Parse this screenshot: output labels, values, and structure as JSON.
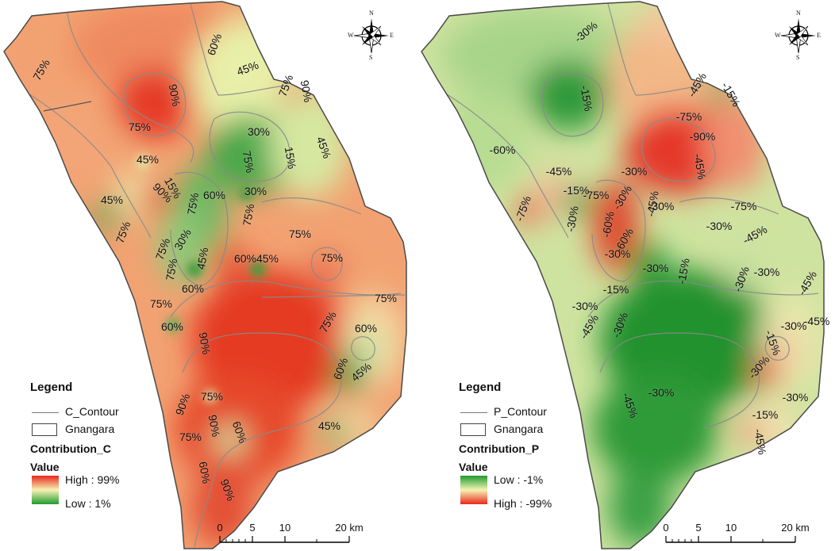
{
  "maps": [
    {
      "id": "C",
      "legend": {
        "title": "Legend",
        "contour_label": "C_Contour",
        "region_label": "Gnangara",
        "field_label": "Contribution_C",
        "value_label": "Value",
        "high_label": "High : 99%",
        "low_label": "Low : 1%",
        "ramp_top_color": "#e8281c",
        "ramp_mid_color": "#f7f3b5",
        "ramp_bottom_color": "#1e9b2e"
      },
      "contour_labels": [
        "75%",
        "90%",
        "75%",
        "60%",
        "45%",
        "75%",
        "90%",
        "30%",
        "15%",
        "45%",
        "75%",
        "45%",
        "45%",
        "90%",
        "15%",
        "75%",
        "60%",
        "30%",
        "75%",
        "75%",
        "75%",
        "30%",
        "75%",
        "45%",
        "60%",
        "45%",
        "75%",
        "60%",
        "75%",
        "75%",
        "75%",
        "60%",
        "90%",
        "75%",
        "60%",
        "60%",
        "45%",
        "90%",
        "75%",
        "90%",
        "75%",
        "60%",
        "45%",
        "60%",
        "90%"
      ]
    },
    {
      "id": "P",
      "legend": {
        "title": "Legend",
        "contour_label": "P_Contour",
        "region_label": "Gnangara",
        "field_label": "Contribution_P",
        "value_label": "Value",
        "low_label": "Low : -1%",
        "high_label": "High : -99%",
        "ramp_top_color": "#1e9b2e",
        "ramp_mid_color": "#f7f3b5",
        "ramp_bottom_color": "#e8281c"
      },
      "contour_labels": [
        "-30%",
        "-15%",
        "-45%",
        "-15%",
        "-60%",
        "-75%",
        "-90%",
        "-45%",
        "-30%",
        "-45%",
        "-15%",
        "-75%",
        "-30%",
        "-45%",
        "-75%",
        "-30%",
        "-60%",
        "-30%",
        "-75%",
        "-30%",
        "-45%",
        "-60%",
        "-30%",
        "-30%",
        "-15%",
        "-30%",
        "-30%",
        "-45%",
        "-15%",
        "-30%",
        "-30%",
        "-45%",
        "-45%",
        "-30%",
        "-15%",
        "-30%",
        "-30%",
        "-45%",
        "-30%",
        "-15%",
        "-45%"
      ]
    }
  ],
  "scale_bar": {
    "ticks": [
      "0",
      "5",
      "10",
      "20 km"
    ]
  },
  "compass": {
    "n": "N",
    "s": "S",
    "e": "E",
    "w": "W"
  }
}
